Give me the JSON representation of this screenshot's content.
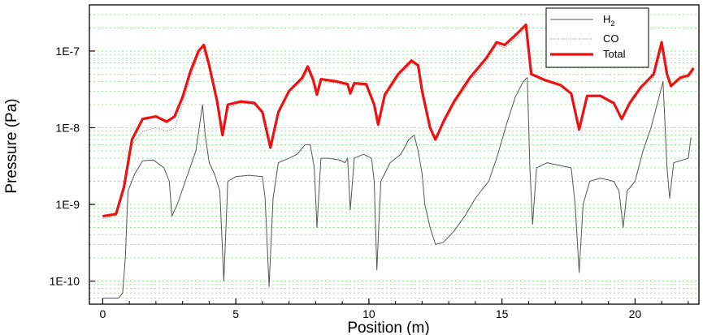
{
  "chart_data": {
    "type": "line",
    "xlabel": "Position (m)",
    "ylabel": "Pressure (Pa)",
    "xlim": [
      -0.5,
      22.4
    ],
    "ylim": [
      5e-11,
      4e-07
    ],
    "yscale": "log",
    "x_ticks": [
      0,
      5,
      10,
      15,
      20
    ],
    "x_tick_labels": [
      "0",
      "5",
      "10",
      "15",
      "20"
    ],
    "y_ticks": [
      1e-10,
      1e-09,
      1e-08,
      1e-07
    ],
    "y_tick_labels": [
      "1E-10",
      "1E-9",
      "1E-8",
      "1E-7"
    ],
    "grid": "horizontal minor, dashed green",
    "legend_position": "top-right",
    "series": [
      {
        "name": "H2",
        "color": "#555555",
        "points": [
          [
            0,
            6e-11
          ],
          [
            0.6,
            6e-11
          ],
          [
            0.75,
            7e-11
          ],
          [
            0.85,
            2e-10
          ],
          [
            0.95,
            1.5e-09
          ],
          [
            1.2,
            2.5e-09
          ],
          [
            1.5,
            3.7e-09
          ],
          [
            1.9,
            3.8e-09
          ],
          [
            2.3,
            3e-09
          ],
          [
            2.5,
            2e-09
          ],
          [
            2.6,
            7e-10
          ],
          [
            2.8,
            1e-09
          ],
          [
            3.2,
            2.5e-09
          ],
          [
            3.5,
            5e-09
          ],
          [
            3.75,
            2e-08
          ],
          [
            3.85,
            8e-09
          ],
          [
            4.0,
            3.5e-09
          ],
          [
            4.2,
            2.5e-09
          ],
          [
            4.4,
            1.5e-09
          ],
          [
            4.55,
            1e-10
          ],
          [
            4.7,
            2e-09
          ],
          [
            5.0,
            2.3e-09
          ],
          [
            5.5,
            2.4e-09
          ],
          [
            6.0,
            2.3e-09
          ],
          [
            6.1,
            1.2e-09
          ],
          [
            6.25,
            8.5e-11
          ],
          [
            6.4,
            1.2e-09
          ],
          [
            6.6,
            3.5e-09
          ],
          [
            7.0,
            4e-09
          ],
          [
            7.3,
            4.5e-09
          ],
          [
            7.6,
            6e-09
          ],
          [
            7.8,
            6e-09
          ],
          [
            7.95,
            3e-09
          ],
          [
            8.05,
            5e-10
          ],
          [
            8.2,
            4e-09
          ],
          [
            8.5,
            4e-09
          ],
          [
            8.9,
            3.8e-09
          ],
          [
            9.1,
            3.5e-09
          ],
          [
            9.2,
            4e-09
          ],
          [
            9.3,
            8.5e-10
          ],
          [
            9.45,
            4e-09
          ],
          [
            9.8,
            4.5e-09
          ],
          [
            10.1,
            4e-09
          ],
          [
            10.2,
            2e-09
          ],
          [
            10.3,
            1.4e-10
          ],
          [
            10.45,
            2e-09
          ],
          [
            10.8,
            3.5e-09
          ],
          [
            11.2,
            4.5e-09
          ],
          [
            11.5,
            7e-09
          ],
          [
            11.7,
            8e-09
          ],
          [
            11.85,
            5e-09
          ],
          [
            12.0,
            2.5e-09
          ],
          [
            12.1,
            1e-09
          ],
          [
            12.3,
            5e-10
          ],
          [
            12.5,
            3e-10
          ],
          [
            12.8,
            3.2e-10
          ],
          [
            13.2,
            4.5e-10
          ],
          [
            13.6,
            7e-10
          ],
          [
            14.0,
            1.2e-09
          ],
          [
            14.5,
            2e-09
          ],
          [
            14.8,
            4e-09
          ],
          [
            15.2,
            1.2e-08
          ],
          [
            15.5,
            2.5e-08
          ],
          [
            15.8,
            4e-08
          ],
          [
            15.95,
            4.5e-08
          ],
          [
            16.05,
            3e-09
          ],
          [
            16.15,
            5.5e-10
          ],
          [
            16.3,
            3e-09
          ],
          [
            16.7,
            3.5e-09
          ],
          [
            17.2,
            3.2e-09
          ],
          [
            17.6,
            3e-09
          ],
          [
            17.75,
            1e-09
          ],
          [
            17.9,
            1.3e-10
          ],
          [
            18.05,
            1e-09
          ],
          [
            18.3,
            2e-09
          ],
          [
            18.7,
            2.2e-09
          ],
          [
            19.2,
            2e-09
          ],
          [
            19.4,
            1.5e-09
          ],
          [
            19.55,
            5e-10
          ],
          [
            19.7,
            1.5e-09
          ],
          [
            20.0,
            2e-09
          ],
          [
            20.3,
            5e-09
          ],
          [
            20.6,
            1e-08
          ],
          [
            20.9,
            2.5e-08
          ],
          [
            21.05,
            4e-08
          ],
          [
            21.2,
            3e-09
          ],
          [
            21.3,
            1.2e-09
          ],
          [
            21.45,
            3.5e-09
          ],
          [
            21.8,
            3.8e-09
          ],
          [
            22.0,
            4e-09
          ],
          [
            22.1,
            7.5e-09
          ]
        ]
      },
      {
        "name": "CO",
        "color": "#888888",
        "points": [
          [
            0,
            6.5e-10
          ],
          [
            0.5,
            7e-10
          ],
          [
            0.8,
            1.5e-09
          ],
          [
            1.1,
            6e-09
          ],
          [
            1.5,
            9e-09
          ],
          [
            2.0,
            1e-08
          ],
          [
            2.4,
            9e-09
          ],
          [
            2.7,
            1e-08
          ],
          [
            3.0,
            2e-08
          ],
          [
            3.3,
            4.5e-08
          ],
          [
            3.6,
            9e-08
          ],
          [
            3.8,
            1e-07
          ],
          [
            4.0,
            6e-08
          ],
          [
            4.3,
            2e-08
          ],
          [
            4.5,
            8e-09
          ],
          [
            4.7,
            1.8e-08
          ],
          [
            5.2,
            2.1e-08
          ],
          [
            5.7,
            2e-08
          ],
          [
            6.0,
            1.5e-08
          ],
          [
            6.3,
            5.8e-09
          ],
          [
            6.6,
            1.5e-08
          ],
          [
            7.0,
            3e-08
          ],
          [
            7.5,
            4e-08
          ],
          [
            7.7,
            5.5e-08
          ],
          [
            7.9,
            4e-08
          ],
          [
            8.05,
            2.7e-08
          ],
          [
            8.2,
            4e-08
          ],
          [
            8.8,
            3.8e-08
          ],
          [
            9.2,
            3.5e-08
          ],
          [
            9.3,
            2.7e-08
          ],
          [
            9.45,
            3.7e-08
          ],
          [
            9.9,
            3.5e-08
          ],
          [
            10.2,
            2e-08
          ],
          [
            10.35,
            1.1e-08
          ],
          [
            10.6,
            2.5e-08
          ],
          [
            11.1,
            4.5e-08
          ],
          [
            11.6,
            7e-08
          ],
          [
            11.85,
            6e-08
          ],
          [
            12.0,
            3e-08
          ],
          [
            12.3,
            1e-08
          ],
          [
            12.5,
            7e-09
          ],
          [
            12.8,
            1.1e-08
          ],
          [
            13.2,
            2e-08
          ],
          [
            13.8,
            4e-08
          ],
          [
            14.4,
            7e-08
          ],
          [
            14.8,
            1.2e-07
          ],
          [
            15.1,
            1.1e-07
          ],
          [
            15.5,
            1.4e-07
          ],
          [
            15.9,
            2e-07
          ],
          [
            16.1,
            5e-08
          ],
          [
            16.6,
            4e-08
          ],
          [
            17.2,
            3.5e-08
          ],
          [
            17.6,
            2.7e-08
          ],
          [
            17.9,
            1e-08
          ],
          [
            18.2,
            2.5e-08
          ],
          [
            18.7,
            2.5e-08
          ],
          [
            19.2,
            2e-08
          ],
          [
            19.5,
            1.3e-08
          ],
          [
            19.8,
            2e-08
          ],
          [
            20.2,
            3e-08
          ],
          [
            20.7,
            4.5e-08
          ],
          [
            21.0,
            1.1e-07
          ],
          [
            21.2,
            5e-08
          ],
          [
            21.35,
            3.5e-08
          ],
          [
            21.7,
            4.2e-08
          ],
          [
            22.0,
            4.5e-08
          ],
          [
            22.2,
            5.5e-08
          ]
        ]
      },
      {
        "name": "Total",
        "color": "#ee1111",
        "points": [
          [
            0,
            7e-10
          ],
          [
            0.5,
            7.5e-10
          ],
          [
            0.8,
            1.7e-09
          ],
          [
            1.1,
            7e-09
          ],
          [
            1.5,
            1.3e-08
          ],
          [
            2.0,
            1.4e-08
          ],
          [
            2.4,
            1.2e-08
          ],
          [
            2.7,
            1.4e-08
          ],
          [
            3.0,
            2.5e-08
          ],
          [
            3.3,
            5.5e-08
          ],
          [
            3.6,
            1e-07
          ],
          [
            3.8,
            1.2e-07
          ],
          [
            4.0,
            6.5e-08
          ],
          [
            4.3,
            2.2e-08
          ],
          [
            4.5,
            8e-09
          ],
          [
            4.7,
            2e-08
          ],
          [
            5.2,
            2.2e-08
          ],
          [
            5.7,
            2.1e-08
          ],
          [
            6.0,
            1.6e-08
          ],
          [
            6.3,
            5.5e-09
          ],
          [
            6.6,
            1.6e-08
          ],
          [
            7.0,
            3e-08
          ],
          [
            7.5,
            4.5e-08
          ],
          [
            7.7,
            6.3e-08
          ],
          [
            7.9,
            4.3e-08
          ],
          [
            8.05,
            2.7e-08
          ],
          [
            8.2,
            4.3e-08
          ],
          [
            8.8,
            4e-08
          ],
          [
            9.2,
            3.7e-08
          ],
          [
            9.3,
            2.8e-08
          ],
          [
            9.45,
            3.8e-08
          ],
          [
            9.9,
            3.7e-08
          ],
          [
            10.2,
            2e-08
          ],
          [
            10.35,
            1.1e-08
          ],
          [
            10.6,
            2.7e-08
          ],
          [
            11.1,
            5e-08
          ],
          [
            11.6,
            7.5e-08
          ],
          [
            11.85,
            6.5e-08
          ],
          [
            12.0,
            3e-08
          ],
          [
            12.3,
            1e-08
          ],
          [
            12.5,
            7e-09
          ],
          [
            12.8,
            1.2e-08
          ],
          [
            13.2,
            2.2e-08
          ],
          [
            13.8,
            4.5e-08
          ],
          [
            14.4,
            8e-08
          ],
          [
            14.8,
            1.3e-07
          ],
          [
            15.1,
            1.2e-07
          ],
          [
            15.5,
            1.6e-07
          ],
          [
            15.9,
            2.2e-07
          ],
          [
            16.1,
            5e-08
          ],
          [
            16.6,
            4.2e-08
          ],
          [
            17.2,
            3.6e-08
          ],
          [
            17.6,
            2.8e-08
          ],
          [
            17.9,
            9.5e-09
          ],
          [
            18.2,
            2.6e-08
          ],
          [
            18.7,
            2.6e-08
          ],
          [
            19.2,
            2.1e-08
          ],
          [
            19.5,
            1.3e-08
          ],
          [
            19.8,
            2.1e-08
          ],
          [
            20.2,
            3.3e-08
          ],
          [
            20.7,
            5e-08
          ],
          [
            21.0,
            1.3e-07
          ],
          [
            21.2,
            5e-08
          ],
          [
            21.35,
            3.5e-08
          ],
          [
            21.7,
            4.5e-08
          ],
          [
            22.0,
            4.8e-08
          ],
          [
            22.2,
            6e-08
          ]
        ]
      }
    ],
    "legend": {
      "h2_main": "H",
      "h2_sub": "2",
      "co": "CO",
      "total": "Total"
    }
  }
}
